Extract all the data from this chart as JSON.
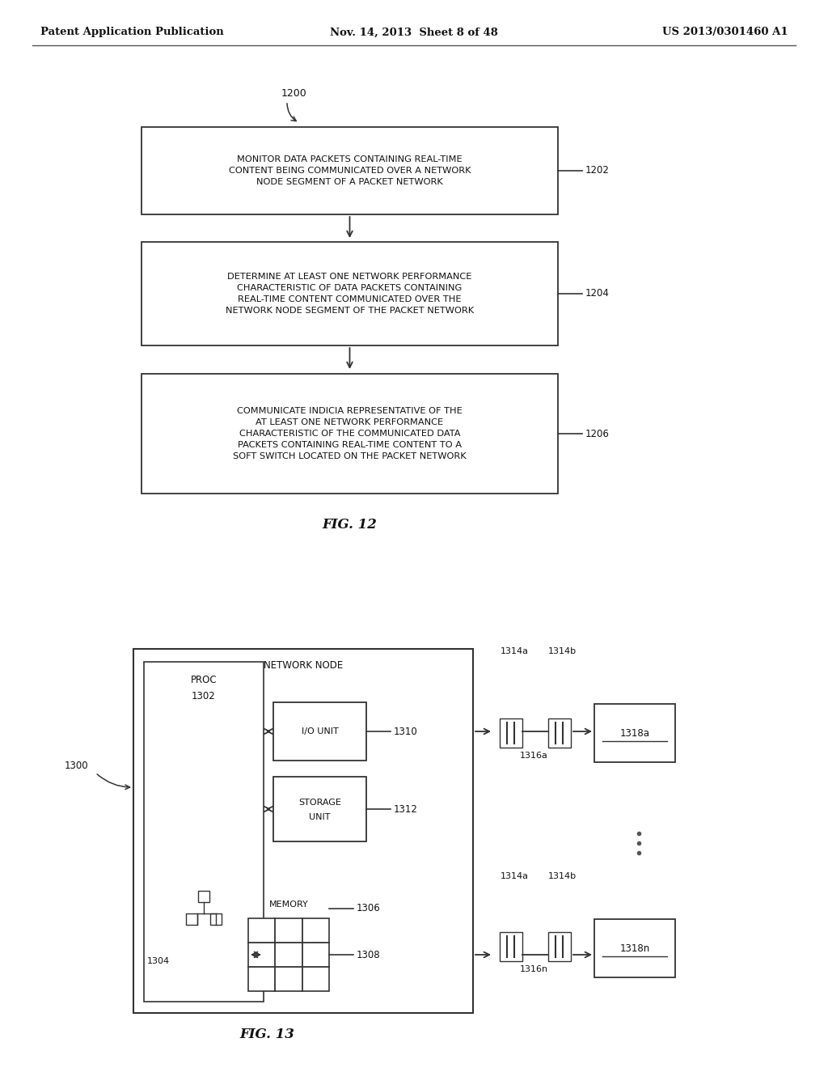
{
  "bg_color": "#ffffff",
  "header_left": "Patent Application Publication",
  "header_mid": "Nov. 14, 2013  Sheet 8 of 48",
  "header_right": "US 2013/0301460 A1",
  "fig12_caption": "FIG. 12",
  "fig13_caption": "FIG. 13",
  "label_1200": "1200",
  "label_1202": "1202",
  "label_1204": "1204",
  "label_1206": "1206",
  "box1_text": "MONITOR DATA PACKETS CONTAINING REAL-TIME\nCONTENT BEING COMMUNICATED OVER A NETWORK\nNODE SEGMENT OF A PACKET NETWORK",
  "box2_text": "DETERMINE AT LEAST ONE NETWORK PERFORMANCE\nCHARACTERISTIC OF DATA PACKETS CONTAINING\nREAL-TIME CONTENT COMMUNICATED OVER THE\nNETWORK NODE SEGMENT OF THE PACKET NETWORK",
  "box3_text": "COMMUNICATE INDICIA REPRESENTATIVE OF THE\nAT LEAST ONE NETWORK PERFORMANCE\nCHARACTERISTIC OF THE COMMUNICATED DATA\nPACKETS CONTAINING REAL-TIME CONTENT TO A\nSOFT SWITCH LOCATED ON THE PACKET NETWORK",
  "line_color": "#333333",
  "text_color": "#111111"
}
